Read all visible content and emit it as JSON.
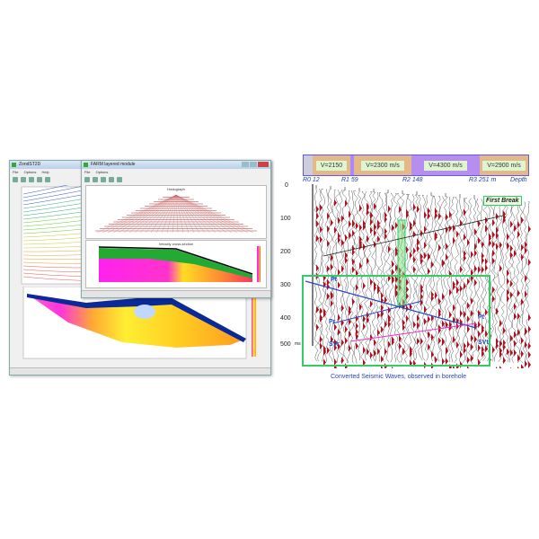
{
  "left_app": {
    "back_window": {
      "title": "ZondST2D",
      "menu": [
        "File",
        "Options",
        "Help"
      ]
    },
    "front_window": {
      "title": "FARM layered module",
      "menu": [
        "File",
        "Options"
      ],
      "hodograph_title": "Hodograph",
      "section_title": "Velocity cross-section"
    }
  },
  "right_figure": {
    "velocities": [
      "V=2150",
      "V=2300 m/s",
      "V=4300 m/s",
      "V=2900 m/s"
    ],
    "reflector_labels": [
      "R0 12",
      "R1 59",
      "R2 148",
      "R3 251 m",
      "Depth"
    ],
    "y_ticks": [
      "0",
      "100",
      "200",
      "300",
      "400",
      "500"
    ],
    "y_unit": "ms",
    "annotation": "First Break",
    "wave_labels": [
      "Pt",
      "Pr",
      "Pt",
      "SVr",
      "SVt"
    ],
    "caption": "Converted Seismic Waves, observed in borehole",
    "colors": {
      "accent_blue": "#2244cc",
      "box_green": "#33cc66",
      "wiggle_red": "#b01020"
    }
  }
}
